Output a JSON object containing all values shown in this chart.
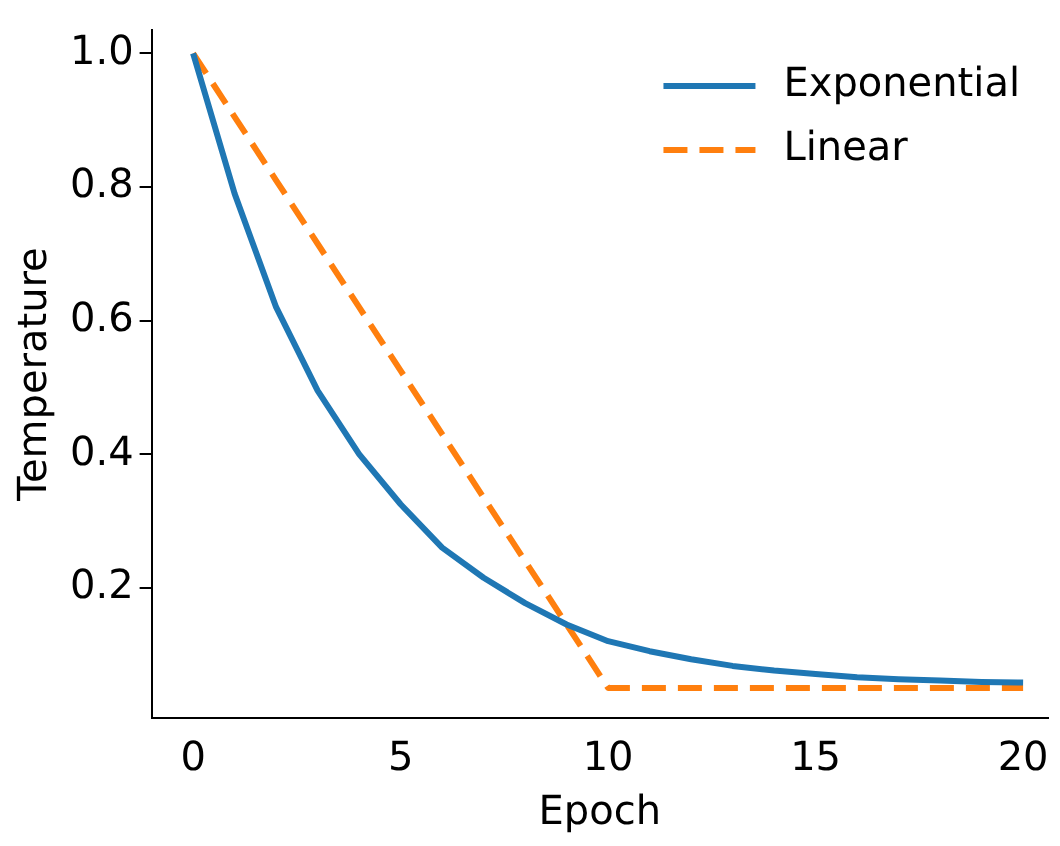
{
  "chart_data": {
    "type": "line",
    "xlabel": "Epoch",
    "ylabel": "Temperature",
    "x": [
      0,
      1,
      2,
      3,
      4,
      5,
      6,
      7,
      8,
      9,
      10,
      11,
      12,
      13,
      14,
      15,
      16,
      17,
      18,
      19,
      20
    ],
    "series": [
      {
        "name": "Exponential",
        "color": "#1f77b4",
        "line_style": "solid",
        "values": [
          1,
          0.79,
          0.62,
          0.495,
          0.4,
          0.325,
          0.26,
          0.215,
          0.177,
          0.145,
          0.12,
          0.105,
          0.093,
          0.083,
          0.076,
          0.071,
          0.066,
          0.063,
          0.061,
          0.059,
          0.058
        ]
      },
      {
        "name": "Linear",
        "color": "#ff7f0e",
        "line_style": "dashed",
        "values": [
          1,
          0.905,
          0.81,
          0.715,
          0.62,
          0.525,
          0.43,
          0.335,
          0.24,
          0.145,
          0.05,
          0.05,
          0.05,
          0.05,
          0.05,
          0.05,
          0.05,
          0.05,
          0.05,
          0.05,
          0.05
        ]
      }
    ],
    "xlim": [
      -1,
      20.6
    ],
    "xticks": [
      0,
      5,
      10,
      15,
      20
    ],
    "ylim": [
      0.005,
      1.035
    ],
    "yticks": [
      0.2,
      0.4,
      0.6,
      0.8,
      {
        "value": 1,
        "label": "1.0"
      }
    ],
    "grid": false,
    "legend": "top right",
    "marker": "none"
  }
}
